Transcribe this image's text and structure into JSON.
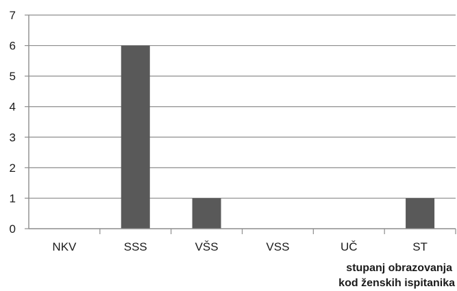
{
  "chart_data": {
    "type": "bar",
    "categories": [
      "NKV",
      "SSS",
      "VŠS",
      "VSS",
      "UČ",
      "ST"
    ],
    "values": [
      0,
      6,
      1,
      0,
      0,
      1
    ],
    "title": "",
    "xlabel_lines": [
      "stupanj obrazovanja",
      "kod  ženskih ispitanika"
    ],
    "ylabel": "",
    "ylim": [
      0,
      7
    ],
    "yticks": [
      0,
      1,
      2,
      3,
      4,
      5,
      6,
      7
    ],
    "grid": true,
    "legend": "none",
    "colors": {
      "bar": "#595959",
      "grid": "#8c8c8c",
      "axis": "#8c8c8c"
    }
  }
}
